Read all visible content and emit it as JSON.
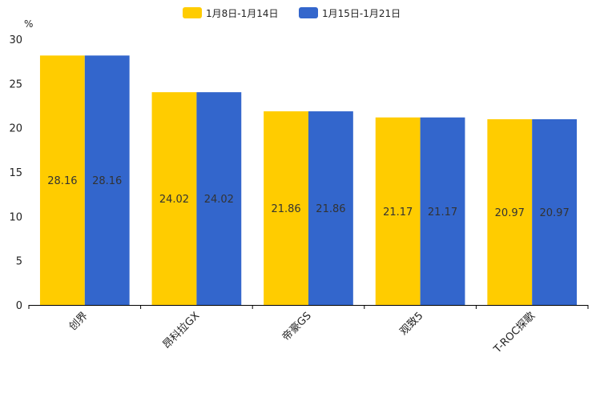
{
  "chart_data": {
    "type": "bar",
    "title": "",
    "xlabel": "",
    "ylabel": "%",
    "ylim": [
      0,
      30
    ],
    "yticks": [
      "0",
      "5",
      "10",
      "15",
      "20",
      "25",
      "30"
    ],
    "categories": [
      "创界",
      "昂科拉GX",
      "帝豪GS",
      "观致5",
      "T-ROC探歌"
    ],
    "series": [
      {
        "name": "1月8日-1月14日",
        "color": "#FFCC00",
        "values": [
          28.16,
          24.02,
          21.86,
          21.17,
          20.97
        ]
      },
      {
        "name": "1月15日-1月21日",
        "color": "#3366CC",
        "values": [
          28.16,
          24.02,
          21.86,
          21.17,
          20.97
        ]
      }
    ],
    "legend_position": "top-center",
    "grid": false
  }
}
